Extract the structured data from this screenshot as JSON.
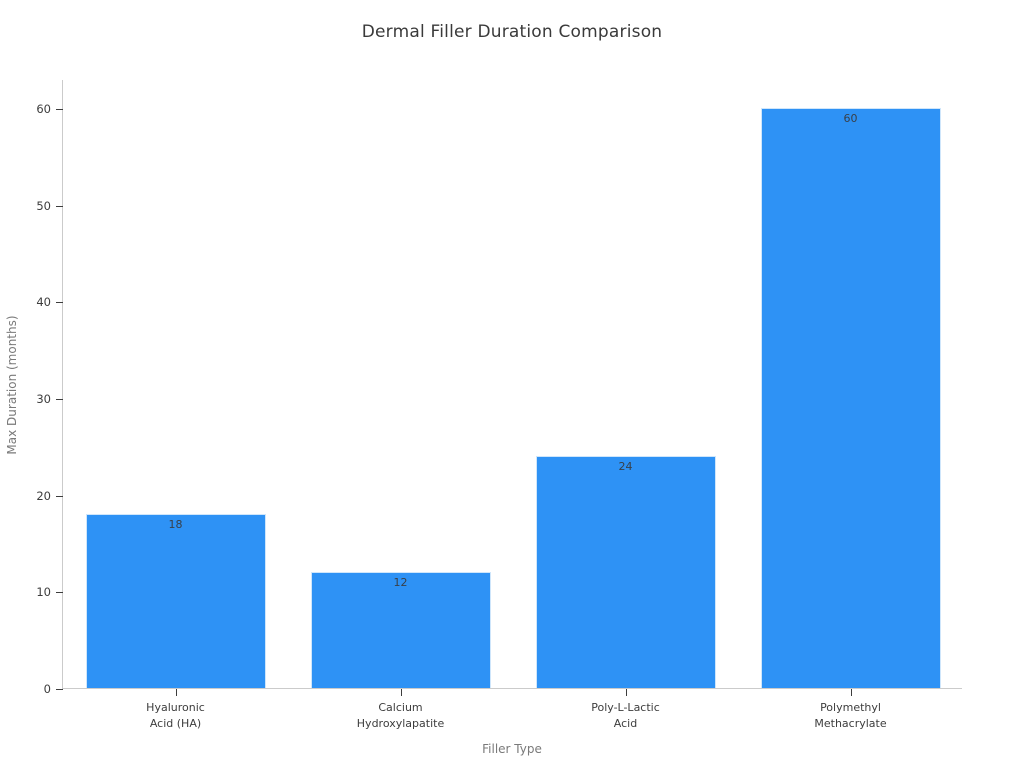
{
  "chart_data": {
    "type": "bar",
    "title": "Dermal Filler Duration Comparison",
    "xlabel": "Filler Type",
    "ylabel": "Max Duration (months)",
    "categories": [
      "Hyaluronic\nAcid (HA)",
      "Calcium\nHydroxylapatite",
      "Poly-L-Lactic\nAcid",
      "Polymethyl\nMethacrylate"
    ],
    "values": [
      18,
      12,
      24,
      60
    ],
    "value_labels": [
      "18",
      "12",
      "24",
      "60"
    ],
    "yticks": [
      0,
      10,
      20,
      30,
      40,
      50,
      60
    ],
    "ylim": [
      0,
      63
    ],
    "grid": false,
    "legend": null,
    "colors": {
      "bar_fill": "#2e92f5",
      "bar_edge": "#cfe6fb",
      "value_label": "#38404a",
      "tick_label": "#3d3d3d",
      "axis_title": "#7a7a7a",
      "spine": "#cbcbcb",
      "title": "#3a3a3a",
      "background": "#ffffff"
    }
  }
}
